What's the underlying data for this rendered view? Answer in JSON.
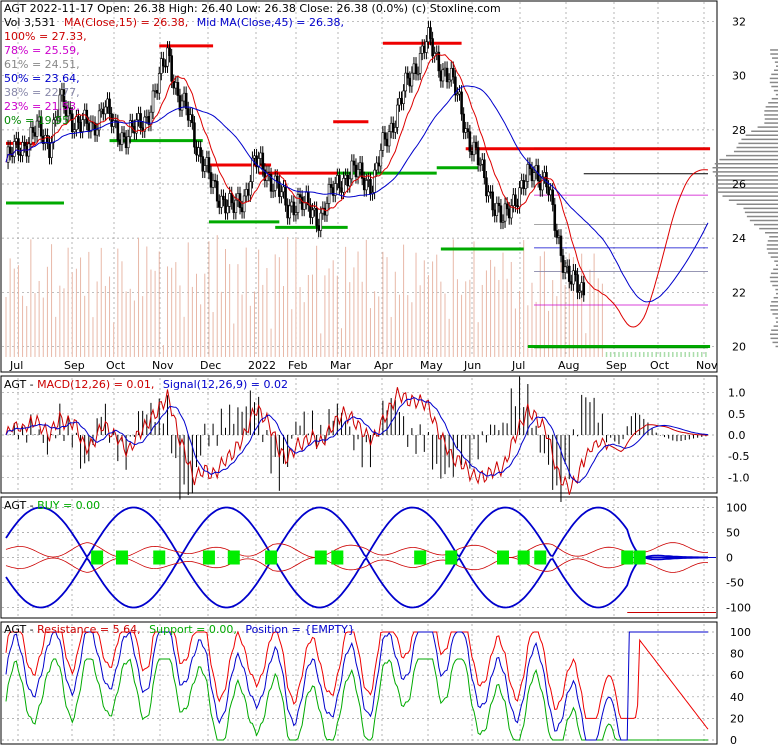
{
  "header": {
    "line1": "AGT  2022-11-17  Open: 26.38  High: 26.40  Low: 26.38  Close: 26.38 (0.0%)  (c) Stoxline.com",
    "vol_label": "Vol 3,531",
    "ma_label": "MA(Close,15) = 26.38,",
    "midma_label": "Mid MA(Close,45) = 26.38,"
  },
  "fib_levels": [
    {
      "label": "100% = 27.33,",
      "color": "#cc0000"
    },
    {
      "label": "78% = 25.59,",
      "color": "#cc00cc"
    },
    {
      "label": "61% = 24.51,",
      "color": "#888888"
    },
    {
      "label": "50% = 23.64,",
      "color": "#0000cc"
    },
    {
      "label": "38% = 22.77,",
      "color": "#8888aa"
    },
    {
      "label": "23% = 21.53,",
      "color": "#cc00cc"
    },
    {
      "label": "0% = 19.95",
      "color": "#008800"
    }
  ],
  "colors": {
    "ma15": "#dd0000",
    "ma45": "#0000cc",
    "volume": "#e8b8a8",
    "resistance": "#ee0000",
    "support": "#00aa00",
    "macd": "#cc0000",
    "signal": "#0000cc",
    "buy": "#00ee00"
  },
  "chart_data": [
    {
      "type": "candlestick",
      "title": "AGT  2022-11-17  Open: 26.38  High: 26.40  Low: 26.38  Close: 26.38 (0.0%)",
      "x_ticks": [
        "Jul",
        "Sep",
        "Oct",
        "Nov",
        "Dec",
        "2022",
        "Feb",
        "Mar",
        "Apr",
        "May",
        "Jun",
        "Jul",
        "Aug",
        "Sep",
        "Oct",
        "Nov"
      ],
      "y_ticks": [
        20,
        22,
        24,
        26,
        28,
        30,
        32
      ],
      "ylim": [
        19.5,
        32.5
      ],
      "close_path": [
        26.8,
        27.3,
        27.6,
        28.0,
        27.5,
        29.0,
        28.5,
        28.2,
        28.0,
        29.0,
        28.0,
        27.8,
        28.0,
        28.5,
        29.5,
        31.0,
        29.0,
        28.5,
        27.0,
        26.0,
        25.5,
        25.0,
        25.5,
        26.8,
        26.5,
        26.0,
        25.0,
        25.5,
        25.0,
        24.8,
        25.5,
        26.2,
        26.4,
        26.3,
        26.0,
        27.5,
        28.5,
        29.5,
        30.5,
        31.3,
        30.5,
        30.0,
        29.0,
        27.5,
        26.5,
        25.5,
        24.5,
        25.5,
        26.0,
        26.5,
        26.2,
        24.0,
        22.8,
        22.0,
        21.8,
        22.0,
        21.0,
        20.1,
        21.2,
        22.0,
        24.0,
        25.5,
        26.2,
        26.8,
        26.4,
        26.38
      ],
      "ma15": 26.38,
      "mid_ma45": 26.38,
      "volume": 3531,
      "fib": {
        "100%": 27.33,
        "78%": 25.59,
        "61%": 24.51,
        "50%": 23.64,
        "38%": 22.77,
        "23%": 21.53,
        "0%": 19.95
      }
    },
    {
      "type": "line",
      "title": "AGT - MACD(12,26) = 0.01, Signal(12,26,9) = 0.02",
      "y_ticks": [
        -1.0,
        -0.5,
        0.0,
        0.5,
        1.0
      ],
      "ylim": [
        -1.3,
        1.3
      ],
      "series": [
        {
          "name": "MACD(12,26)",
          "value": 0.01
        },
        {
          "name": "Signal(12,26,9)",
          "value": 0.02
        }
      ]
    },
    {
      "type": "line",
      "title": "AGT - BUY = 0.00",
      "y_ticks": [
        -100,
        -50,
        0,
        50,
        100
      ],
      "ylim": [
        -115,
        115
      ],
      "series": [
        {
          "name": "BUY",
          "value": 0.0
        }
      ]
    },
    {
      "type": "line",
      "title": "AGT - Resistance = 5.64, Support = 0.00, Position = {EMPTY}",
      "y_ticks": [
        0,
        20,
        40,
        60,
        80,
        100
      ],
      "ylim": [
        0,
        100
      ],
      "series": [
        {
          "name": "Resistance",
          "value": 5.64
        },
        {
          "name": "Support",
          "value": 0.0
        },
        {
          "name": "Position",
          "value": "{EMPTY}"
        }
      ]
    }
  ],
  "panels": {
    "macd": {
      "prefix": "AGT - ",
      "macd_label": "MACD(12,26) = 0.01,",
      "signal_label": "Signal(12,26,9) = 0.02"
    },
    "buy": {
      "prefix": "AGT - ",
      "buy_label": "BUY = 0.00"
    },
    "rs": {
      "prefix": "AGT - ",
      "res_label": "Resistance = 5.64,",
      "sup_label": "Support = 0.00,",
      "pos_label": "Position = {EMPTY}"
    }
  }
}
